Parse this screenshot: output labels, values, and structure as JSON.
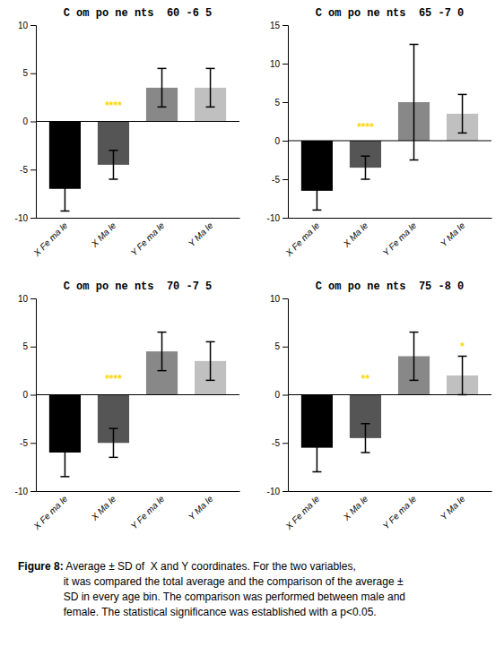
{
  "chart_data": [
    {
      "type": "bar",
      "title": "C om po ne nts  60 -6 5",
      "categories": [
        "X Fe ma le",
        "X Ma le",
        "Y Fe ma le",
        "Y Ma le"
      ],
      "values": [
        -7.0,
        -4.5,
        3.5,
        3.5
      ],
      "errors": [
        2.3,
        1.5,
        2.0,
        2.0
      ],
      "colors": [
        "#000000",
        "#555555",
        "#888888",
        "#c0c0c0"
      ],
      "ylim": [
        -10,
        10
      ],
      "yticks": [
        -10,
        -5,
        0,
        5,
        10
      ],
      "annotations": [
        {
          "text": "****",
          "x": 1,
          "y": 1.2,
          "color": "#ffd700"
        }
      ]
    },
    {
      "type": "bar",
      "title": "C om po ne nts  65 -7 0",
      "categories": [
        "X Fe ma le",
        "X Ma le",
        "Y Fe ma le",
        "Y Ma le"
      ],
      "values": [
        -6.5,
        -3.5,
        5.0,
        3.5
      ],
      "errors": [
        2.5,
        1.5,
        7.5,
        2.5
      ],
      "colors": [
        "#000000",
        "#555555",
        "#888888",
        "#c0c0c0"
      ],
      "ylim": [
        -10,
        15
      ],
      "yticks": [
        -10,
        -5,
        0,
        5,
        10,
        15
      ],
      "annotations": [
        {
          "text": "****",
          "x": 1,
          "y": 1.2,
          "color": "#ffd700"
        }
      ]
    },
    {
      "type": "bar",
      "title": "C om po ne nts  70 -7 5",
      "categories": [
        "X Fe ma le",
        "X Ma le",
        "Y Fe ma le",
        "Y Ma le"
      ],
      "values": [
        -6.0,
        -5.0,
        4.5,
        3.5
      ],
      "errors": [
        2.5,
        1.5,
        2.0,
        2.0
      ],
      "colors": [
        "#000000",
        "#555555",
        "#888888",
        "#c0c0c0"
      ],
      "ylim": [
        -10,
        10
      ],
      "yticks": [
        -10,
        -5,
        0,
        5,
        10
      ],
      "annotations": [
        {
          "text": "****",
          "x": 1,
          "y": 1.2,
          "color": "#ffd700"
        }
      ]
    },
    {
      "type": "bar",
      "title": "C om po ne nts  75 -8 0",
      "categories": [
        "X Fe ma le",
        "X Ma le",
        "Y Fe ma le",
        "Y Ma le"
      ],
      "values": [
        -5.5,
        -4.5,
        4.0,
        2.0
      ],
      "errors": [
        2.5,
        1.5,
        2.5,
        2.0
      ],
      "colors": [
        "#000000",
        "#555555",
        "#888888",
        "#c0c0c0"
      ],
      "ylim": [
        -10,
        10
      ],
      "yticks": [
        -10,
        -5,
        0,
        5,
        10
      ],
      "annotations": [
        {
          "text": "**",
          "x": 1,
          "y": 1.2,
          "color": "#ffd700"
        },
        {
          "text": "*",
          "x": 3,
          "y": 4.5,
          "color": "#ffd700"
        }
      ]
    }
  ],
  "caption": {
    "bold": "Figure 8:",
    "text": " Average ± SD of  X and Y coordinates. For the two variables,\nit was compared the total average and the comparison of the average ±\nSD in every age bin. The comparison was performed between male and\nfemale. The statistical significance was established with a p<0.05."
  }
}
